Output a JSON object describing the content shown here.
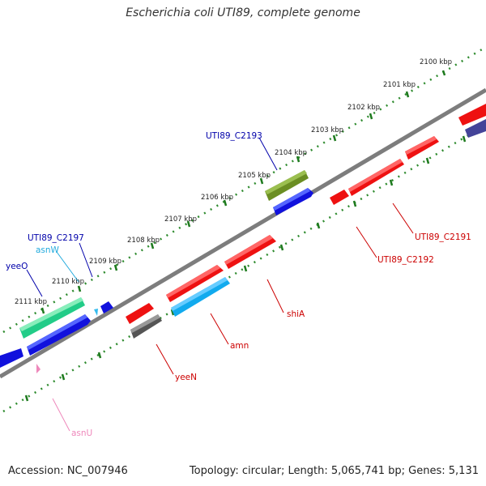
{
  "title": "Escherichia coli UTI89, complete genome",
  "footer": {
    "accession": "Accession: NC_007946",
    "summary": "Topology: circular; Length: 5,065,741 bp; Genes: 5,131"
  },
  "colors": {
    "backbone": "#7d7d7d",
    "tick_dots": "#2e8b2e",
    "forward_gene": "#ee1111",
    "reverse_gene": "#1111ee",
    "olive_gene": "#6b8e23",
    "gray_gene": "#666666",
    "cyan_gene": "#22bbee",
    "mint_gene": "#33dd99",
    "navy_gene": "#5555aa",
    "trna_cyan": "#33bbee",
    "trna_pink": "#ee88bb"
  },
  "ticks": [
    {
      "label": "2100 kbp"
    },
    {
      "label": "2101 kbp"
    },
    {
      "label": "2102 kbp"
    },
    {
      "label": "2103 kbp"
    },
    {
      "label": "2104 kbp"
    },
    {
      "label": "2105 kbp"
    },
    {
      "label": "2106 kbp"
    },
    {
      "label": "2107 kbp"
    },
    {
      "label": "2108 kbp"
    },
    {
      "label": "2109 kbp"
    },
    {
      "label": "2110 kbp"
    },
    {
      "label": "2111 kbp"
    }
  ],
  "gene_labels": [
    {
      "text": "UTI89_C2193",
      "color": "#0000aa"
    },
    {
      "text": "UTI89_C2197",
      "color": "#0000aa"
    },
    {
      "text": "asnW",
      "color": "#22aadd"
    },
    {
      "text": "yeeO",
      "color": "#0000aa"
    },
    {
      "text": "UTI89_C2191",
      "color": "#cc0000"
    },
    {
      "text": "UTI89_C2192",
      "color": "#cc0000"
    },
    {
      "text": "shiA",
      "color": "#cc0000"
    },
    {
      "text": "amn",
      "color": "#cc0000"
    },
    {
      "text": "yeeN",
      "color": "#cc0000"
    },
    {
      "text": "asnU",
      "color": "#ee88bb"
    }
  ]
}
